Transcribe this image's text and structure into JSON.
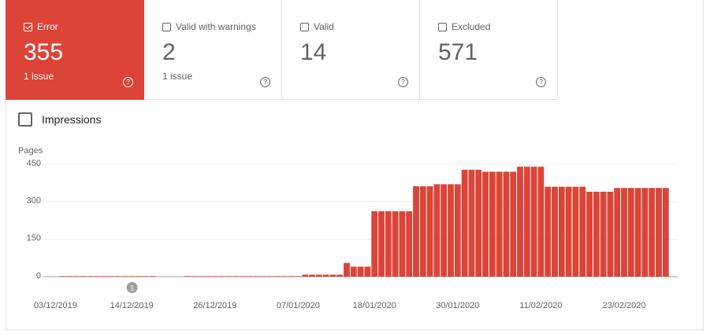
{
  "cards": [
    {
      "label": "Error",
      "value": "355",
      "sub": "1 issue",
      "checked": true
    },
    {
      "label": "Valid with warnings",
      "value": "2",
      "sub": "1 issue",
      "checked": false
    },
    {
      "label": "Valid",
      "value": "14",
      "checked": false
    },
    {
      "label": "Excluded",
      "value": "571",
      "checked": false
    }
  ],
  "toggle": "Impressions",
  "chart_data": {
    "type": "bar",
    "y_label": "Pages",
    "color": "#db4437",
    "grid": true,
    "ylim": [
      0,
      450
    ],
    "yticks": [
      0,
      150,
      300,
      450
    ],
    "annotation": "1",
    "categories": [
      "03/12/2019",
      null,
      null,
      null,
      null,
      null,
      null,
      null,
      null,
      null,
      null,
      "14/12/2019",
      null,
      null,
      null,
      null,
      null,
      null,
      null,
      null,
      null,
      null,
      null,
      "26/12/2019",
      null,
      null,
      null,
      null,
      null,
      null,
      null,
      null,
      null,
      null,
      null,
      "07/01/2020",
      null,
      null,
      null,
      null,
      null,
      null,
      null,
      null,
      null,
      null,
      "18/01/2020",
      null,
      null,
      null,
      null,
      null,
      null,
      null,
      null,
      null,
      null,
      null,
      "30/01/2020",
      null,
      null,
      null,
      null,
      null,
      null,
      null,
      null,
      null,
      null,
      null,
      "11/02/2020",
      null,
      null,
      null,
      null,
      null,
      null,
      null,
      null,
      null,
      null,
      null,
      "23/02/2020",
      null,
      null,
      null,
      null,
      null,
      null
    ],
    "values": [
      null,
      2,
      2,
      2,
      2,
      2,
      2,
      2,
      2,
      2,
      2,
      2,
      2,
      2,
      2,
      null,
      null,
      null,
      null,
      2,
      2,
      2,
      2,
      2,
      2,
      2,
      2,
      2,
      2,
      2,
      2,
      2,
      2,
      2,
      2,
      2,
      8,
      8,
      8,
      8,
      8,
      8,
      55,
      40,
      40,
      40,
      262,
      262,
      262,
      262,
      262,
      262,
      362,
      362,
      362,
      370,
      370,
      370,
      370,
      428,
      428,
      428,
      420,
      420,
      420,
      420,
      420,
      440,
      440,
      440,
      440,
      360,
      360,
      360,
      360,
      360,
      360,
      340,
      340,
      340,
      340,
      355,
      355,
      355,
      355,
      355,
      355,
      355,
      355
    ]
  }
}
